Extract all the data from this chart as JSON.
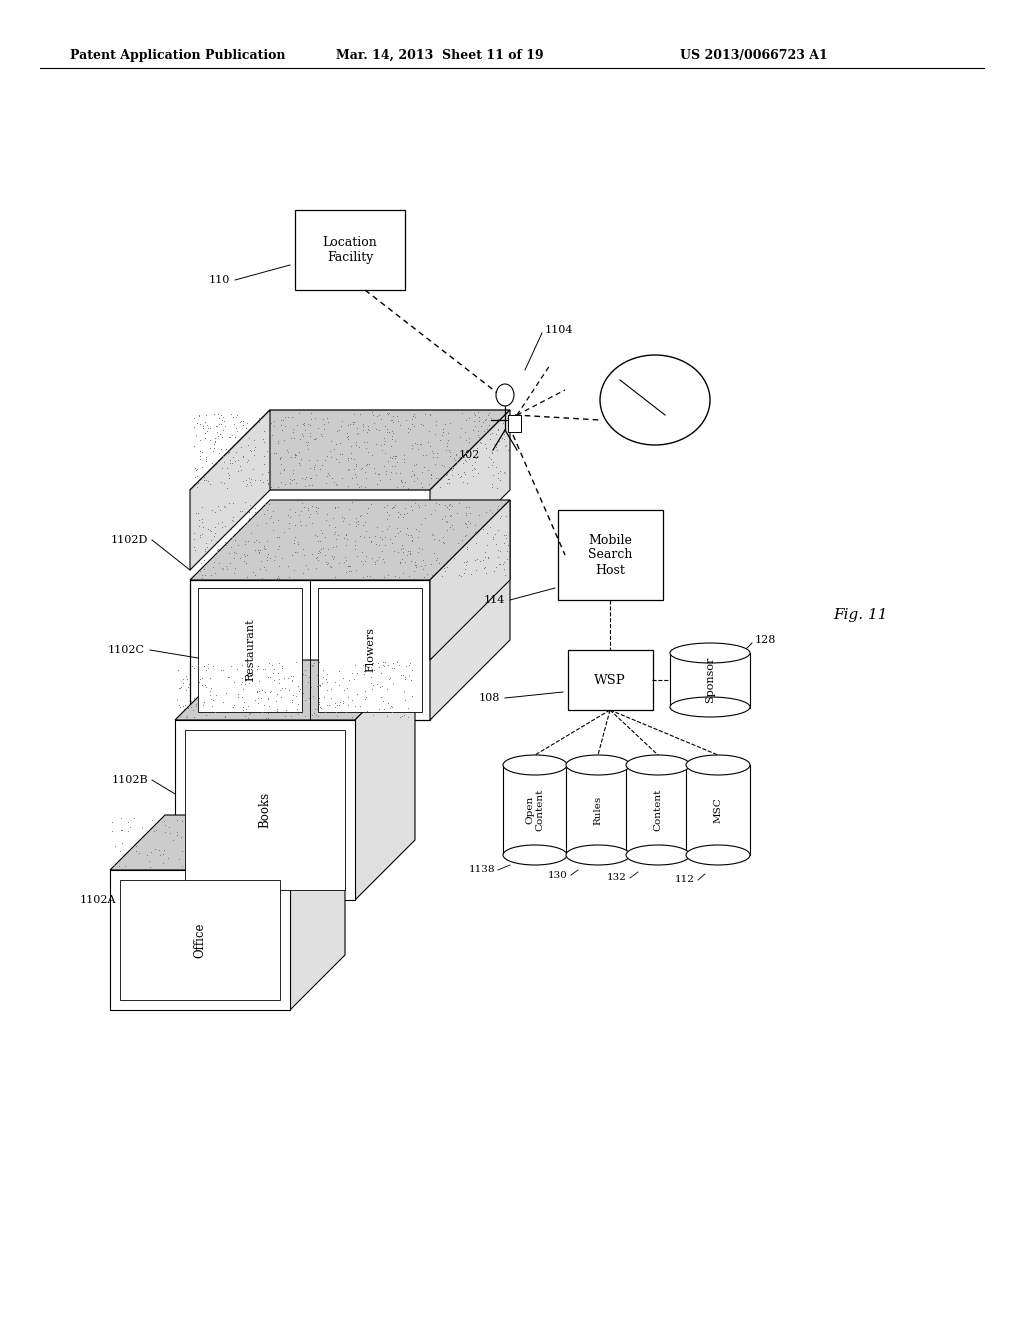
{
  "header_left": "Patent Application Publication",
  "header_mid": "Mar. 14, 2013  Sheet 11 of 19",
  "header_right": "US 2013/0066723 A1",
  "fig_label": "Fig. 11",
  "bg_color": "#ffffff"
}
